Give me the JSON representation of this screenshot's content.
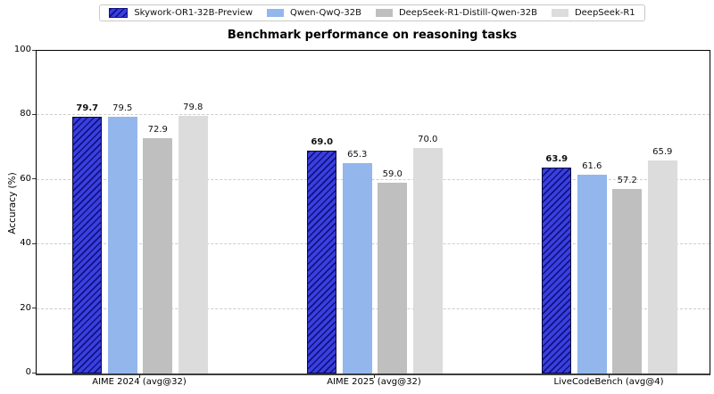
{
  "chart_data": {
    "type": "bar",
    "title": "Benchmark performance on reasoning tasks",
    "ylabel": "Accuracy (%)",
    "ylim": [
      0,
      100
    ],
    "yticks": [
      0,
      20,
      40,
      60,
      80,
      100
    ],
    "grid": "horizontal-dashed",
    "legend_position": "top-center",
    "categories": [
      "AIME 2024 (avg@32)",
      "AIME 2025 (avg@32)",
      "LiveCodeBench (avg@4)"
    ],
    "series": [
      {
        "name": "Skywork-OR1-32B-Preview",
        "color": "#3a3fe0",
        "hatch": true,
        "hatch_color": "#10127e",
        "bold_labels": true,
        "values": [
          79.7,
          69.0,
          63.9
        ]
      },
      {
        "name": "Qwen-QwQ-32B",
        "color": "#93b6ec",
        "hatch": false,
        "bold_labels": false,
        "values": [
          79.5,
          65.3,
          61.6
        ]
      },
      {
        "name": "DeepSeek-R1-Distill-Qwen-32B",
        "color": "#bfbfbf",
        "hatch": false,
        "bold_labels": false,
        "values": [
          72.9,
          59.0,
          57.2
        ]
      },
      {
        "name": "DeepSeek-R1",
        "color": "#dcdcdc",
        "hatch": false,
        "bold_labels": false,
        "values": [
          79.8,
          70.0,
          65.9
        ]
      }
    ]
  }
}
